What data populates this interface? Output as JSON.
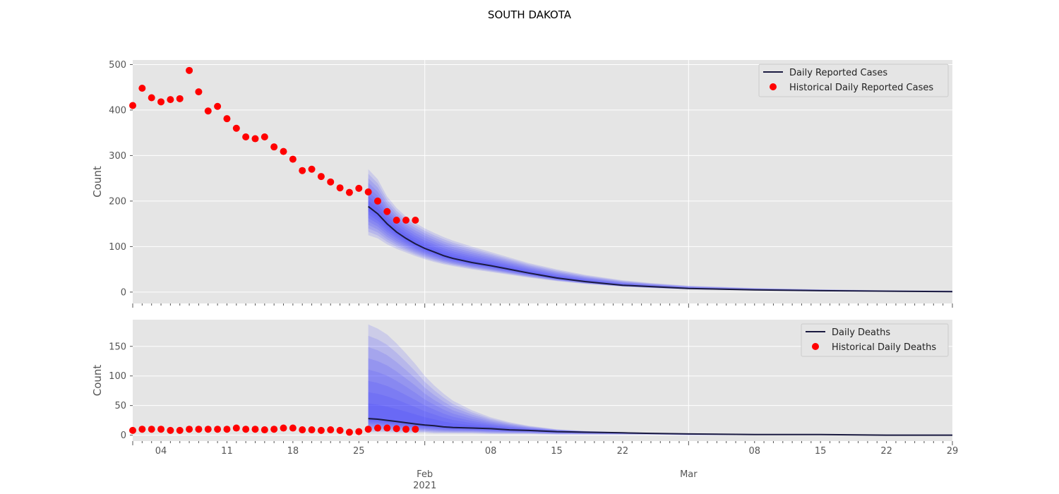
{
  "title": "SOUTH DAKOTA",
  "x_axis": {
    "ticks": [
      {
        "label": "04",
        "day": 3
      },
      {
        "label": "11",
        "day": 10
      },
      {
        "label": "18",
        "day": 17
      },
      {
        "label": "25",
        "day": 24
      },
      {
        "label": "08",
        "day": 38
      },
      {
        "label": "15",
        "day": 45
      },
      {
        "label": "22",
        "day": 52
      },
      {
        "label": "08",
        "day": 66
      },
      {
        "label": "15",
        "day": 73
      },
      {
        "label": "22",
        "day": 80
      },
      {
        "label": "29",
        "day": 87
      }
    ],
    "month_ticks": [
      {
        "label": "Feb",
        "sublabel": "2021",
        "day": 31
      },
      {
        "label": "Mar",
        "sublabel": "",
        "day": 59
      }
    ]
  },
  "colors": {
    "background": "#e5e5e5",
    "grid": "#ffffff",
    "forecast_line": "#1a1a40",
    "band": "#3a3aff",
    "historical": "#ff0000"
  },
  "chart_data": [
    {
      "type": "line",
      "ylabel": "Count",
      "yticks": [
        0,
        100,
        200,
        300,
        400,
        500
      ],
      "ylim": [
        -25,
        510
      ],
      "xlim_days": [
        0,
        87
      ],
      "legend": {
        "placement": "top-right",
        "line_label": "Daily Reported Cases",
        "points_label": "Historical Daily Reported Cases"
      },
      "forecast": {
        "x": [
          25,
          26,
          27,
          28,
          29,
          30,
          31,
          32,
          33,
          34,
          36,
          38,
          40,
          42,
          45,
          48,
          52,
          55,
          59,
          66,
          73,
          80,
          87
        ],
        "median": [
          188,
          172,
          150,
          132,
          118,
          106,
          96,
          88,
          80,
          74,
          65,
          58,
          50,
          42,
          31,
          23,
          15,
          12,
          8,
          5,
          3,
          2,
          1
        ],
        "upper": [
          270,
          248,
          210,
          185,
          166,
          152,
          140,
          130,
          121,
          113,
          100,
          88,
          76,
          64,
          50,
          38,
          26,
          20,
          14,
          9,
          6,
          4,
          3
        ],
        "lower": [
          125,
          118,
          105,
          95,
          87,
          79,
          72,
          66,
          61,
          57,
          50,
          44,
          38,
          32,
          24,
          18,
          12,
          9,
          6,
          4,
          2,
          1,
          1
        ]
      },
      "historical": {
        "x": [
          0,
          1,
          2,
          3,
          4,
          5,
          6,
          7,
          8,
          9,
          10,
          11,
          12,
          13,
          14,
          15,
          16,
          17,
          18,
          19,
          20,
          21,
          22,
          23,
          24,
          25,
          26,
          27,
          28,
          29,
          30
        ],
        "y": [
          410,
          448,
          427,
          418,
          423,
          425,
          487,
          440,
          398,
          408,
          381,
          360,
          341,
          337,
          341,
          319,
          309,
          292,
          267,
          270,
          254,
          242,
          229,
          219,
          228,
          220,
          200,
          177,
          158,
          158,
          158
        ]
      }
    },
    {
      "type": "line",
      "ylabel": "Count",
      "yticks": [
        0,
        50,
        100,
        150
      ],
      "ylim": [
        -10,
        195
      ],
      "xlim_days": [
        0,
        87
      ],
      "legend": {
        "placement": "top-right",
        "line_label": "Daily Deaths",
        "points_label": "Historical Daily Deaths"
      },
      "forecast": {
        "x": [
          25,
          26,
          27,
          28,
          29,
          30,
          31,
          32,
          33,
          34,
          36,
          38,
          40,
          42,
          45,
          48,
          52,
          55,
          59,
          66,
          73,
          80,
          87
        ],
        "median": [
          28,
          27,
          25,
          23,
          21,
          19,
          17,
          16,
          14,
          13,
          12,
          11,
          9,
          8,
          6,
          5,
          4,
          3,
          2,
          1,
          1,
          0,
          0
        ],
        "upper": [
          187,
          180,
          170,
          155,
          138,
          120,
          100,
          84,
          70,
          58,
          42,
          30,
          22,
          16,
          10,
          7,
          5,
          4,
          3,
          2,
          1,
          1,
          1
        ],
        "lower": [
          5,
          5,
          5,
          4,
          4,
          4,
          4,
          3,
          3,
          3,
          3,
          2,
          2,
          2,
          1,
          1,
          1,
          1,
          0,
          0,
          0,
          0,
          0
        ]
      },
      "historical": {
        "x": [
          0,
          1,
          2,
          3,
          4,
          5,
          6,
          7,
          8,
          9,
          10,
          11,
          12,
          13,
          14,
          15,
          16,
          17,
          18,
          19,
          20,
          21,
          22,
          23,
          24,
          25,
          26,
          27,
          28,
          29,
          30
        ],
        "y": [
          8,
          10,
          10,
          10,
          8,
          8,
          10,
          10,
          10,
          10,
          10,
          12,
          10,
          10,
          9,
          10,
          12,
          12,
          9,
          9,
          8,
          9,
          8,
          5,
          6,
          10,
          12,
          12,
          11,
          10,
          10
        ]
      }
    }
  ]
}
